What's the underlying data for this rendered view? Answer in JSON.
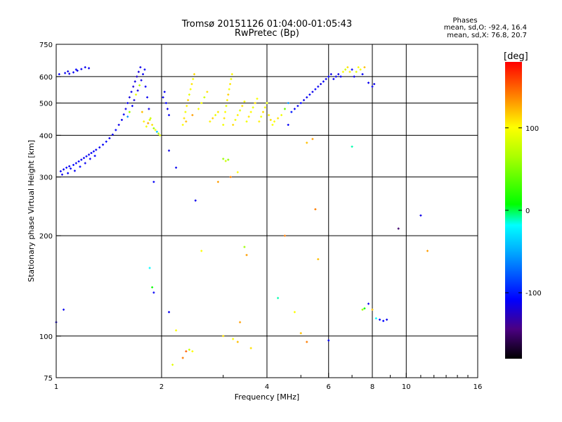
{
  "header": {
    "title_line1": "Tromsø 20151126 01:04:00-01:05:43",
    "title_line2": "RwPretec (Bp)"
  },
  "stats": {
    "heading": "Phases",
    "o_line": "mean, sd,O:  -92.4, 16.4",
    "x_line": "mean, sd,X:  76.8, 20.7"
  },
  "chart_data": {
    "type": "scatter",
    "xlabel": "Frequency [MHz]",
    "ylabel": "Stationary phase Virtual Height [km]",
    "x_scale": "log",
    "y_scale": "log",
    "xlim": [
      1,
      16
    ],
    "ylim": [
      75,
      750
    ],
    "x_ticks": [
      1,
      2,
      4,
      6,
      8,
      10,
      16
    ],
    "x_minor_ticks": [
      3,
      5,
      7,
      9,
      11,
      12,
      13,
      14,
      15
    ],
    "y_ticks": [
      75,
      100,
      200,
      300,
      400,
      500,
      600,
      750
    ],
    "grid": true,
    "colorbar": {
      "label": "[deg]",
      "range": [
        -180,
        180
      ],
      "ticks": [
        -100,
        0,
        100
      ]
    },
    "points": [
      [
        1.03,
        312,
        -110
      ],
      [
        1.05,
        316,
        -112
      ],
      [
        1.07,
        320,
        -108
      ],
      [
        1.09,
        323,
        -113
      ],
      [
        1.1,
        318,
        -110
      ],
      [
        1.12,
        326,
        -105
      ],
      [
        1.14,
        330,
        -112
      ],
      [
        1.16,
        334,
        -108
      ],
      [
        1.18,
        338,
        -110
      ],
      [
        1.2,
        342,
        -112
      ],
      [
        1.22,
        346,
        -106
      ],
      [
        1.24,
        350,
        -114
      ],
      [
        1.26,
        354,
        -110
      ],
      [
        1.28,
        358,
        -108
      ],
      [
        1.3,
        362,
        -112
      ],
      [
        1.04,
        305,
        -115
      ],
      [
        1.08,
        308,
        -109
      ],
      [
        1.13,
        313,
        -111
      ],
      [
        1.17,
        322,
        -107
      ],
      [
        1.21,
        330,
        -113
      ],
      [
        1.25,
        340,
        -111
      ],
      [
        1.29,
        347,
        -109
      ],
      [
        1.33,
        368,
        -112
      ],
      [
        1.36,
        375,
        -110
      ],
      [
        1.39,
        383,
        -106
      ],
      [
        1.42,
        392,
        -113
      ],
      [
        1.45,
        402,
        -111
      ],
      [
        1.48,
        415,
        -108
      ],
      [
        1.51,
        430,
        -114
      ],
      [
        1.54,
        445,
        -112
      ],
      [
        1.56,
        462,
        -110
      ],
      [
        1.58,
        480,
        -116
      ],
      [
        1.6,
        500,
        -112
      ],
      [
        1.62,
        520,
        -118
      ],
      [
        1.64,
        540,
        -114
      ],
      [
        1.66,
        560,
        -120
      ],
      [
        1.68,
        580,
        -116
      ],
      [
        1.7,
        600,
        -122
      ],
      [
        1.72,
        620,
        -118
      ],
      [
        1.74,
        640,
        -115
      ],
      [
        1.6,
        455,
        -60
      ],
      [
        1.62,
        470,
        60
      ],
      [
        1.65,
        490,
        -110
      ],
      [
        1.67,
        510,
        -120
      ],
      [
        1.69,
        530,
        95
      ],
      [
        1.71,
        545,
        -118
      ],
      [
        1.73,
        565,
        70
      ],
      [
        1.75,
        585,
        -115
      ],
      [
        1.77,
        610,
        -112
      ],
      [
        1.79,
        630,
        -110
      ],
      [
        1.06,
        615,
        -112
      ],
      [
        1.09,
        612,
        -114
      ],
      [
        1.12,
        618,
        -110
      ],
      [
        1.15,
        625,
        -115
      ],
      [
        1.18,
        632,
        -112
      ],
      [
        1.21,
        640,
        -111
      ],
      [
        1.24,
        636,
        -113
      ],
      [
        1.02,
        610,
        -110
      ],
      [
        1.08,
        622,
        -116
      ],
      [
        1.14,
        630,
        -108
      ],
      [
        1.8,
        560,
        -110
      ],
      [
        1.82,
        520,
        -112
      ],
      [
        1.84,
        480,
        -115
      ],
      [
        1.86,
        450,
        80
      ],
      [
        1.88,
        430,
        110
      ],
      [
        1.9,
        420,
        60
      ],
      [
        1.92,
        415,
        100
      ],
      [
        1.94,
        410,
        -40
      ],
      [
        1.96,
        405,
        70
      ],
      [
        1.98,
        400,
        90
      ],
      [
        1.76,
        470,
        120
      ],
      [
        1.78,
        440,
        105
      ],
      [
        1.81,
        425,
        95
      ],
      [
        1.83,
        435,
        130
      ],
      [
        1.85,
        445,
        85
      ],
      [
        2.02,
        520,
        -112
      ],
      [
        2.04,
        540,
        -110
      ],
      [
        2.06,
        500,
        -108
      ],
      [
        2.08,
        480,
        -115
      ],
      [
        2.1,
        460,
        -110
      ],
      [
        2.3,
        430,
        100
      ],
      [
        2.32,
        450,
        110
      ],
      [
        2.34,
        470,
        95
      ],
      [
        2.36,
        490,
        105
      ],
      [
        2.38,
        510,
        115
      ],
      [
        2.4,
        530,
        90
      ],
      [
        2.42,
        550,
        100
      ],
      [
        2.44,
        570,
        108
      ],
      [
        2.46,
        590,
        97
      ],
      [
        2.48,
        610,
        112
      ],
      [
        2.35,
        440,
        120
      ],
      [
        2.45,
        460,
        130
      ],
      [
        2.55,
        480,
        100
      ],
      [
        2.6,
        500,
        95
      ],
      [
        2.65,
        520,
        80
      ],
      [
        2.7,
        540,
        110
      ],
      [
        2.75,
        440,
        105
      ],
      [
        2.8,
        450,
        115
      ],
      [
        2.85,
        460,
        92
      ],
      [
        2.9,
        470,
        108
      ],
      [
        3.0,
        430,
        95
      ],
      [
        3.02,
        450,
        110
      ],
      [
        3.04,
        470,
        100
      ],
      [
        3.06,
        490,
        90
      ],
      [
        3.08,
        510,
        105
      ],
      [
        3.1,
        530,
        115
      ],
      [
        3.12,
        550,
        98
      ],
      [
        3.14,
        570,
        108
      ],
      [
        3.16,
        590,
        94
      ],
      [
        3.18,
        610,
        102
      ],
      [
        3.2,
        430,
        112
      ],
      [
        3.25,
        445,
        96
      ],
      [
        3.3,
        460,
        104
      ],
      [
        3.35,
        475,
        88
      ],
      [
        3.4,
        490,
        110
      ],
      [
        3.45,
        505,
        100
      ],
      [
        3.5,
        440,
        95
      ],
      [
        3.55,
        455,
        108
      ],
      [
        3.6,
        470,
        102
      ],
      [
        3.65,
        485,
        92
      ],
      [
        3.7,
        500,
        110
      ],
      [
        3.75,
        515,
        98
      ],
      [
        3.8,
        440,
        105
      ],
      [
        3.85,
        455,
        95
      ],
      [
        3.9,
        470,
        112
      ],
      [
        3.95,
        485,
        100
      ],
      [
        4.0,
        500,
        90
      ],
      [
        4.05,
        460,
        104
      ],
      [
        4.1,
        445,
        110
      ],
      [
        4.15,
        430,
        98
      ],
      [
        4.2,
        440,
        100
      ],
      [
        4.3,
        450,
        110
      ],
      [
        4.4,
        460,
        95
      ],
      [
        4.5,
        480,
        40
      ],
      [
        4.6,
        500,
        -60
      ],
      [
        4.7,
        470,
        -100
      ],
      [
        4.8,
        480,
        -110
      ],
      [
        4.9,
        490,
        -112
      ],
      [
        5.0,
        500,
        -108
      ],
      [
        5.1,
        510,
        -115
      ],
      [
        5.2,
        520,
        -112
      ],
      [
        5.3,
        530,
        -110
      ],
      [
        5.4,
        540,
        -114
      ],
      [
        5.5,
        550,
        -108
      ],
      [
        5.6,
        560,
        -112
      ],
      [
        5.7,
        570,
        -116
      ],
      [
        5.8,
        580,
        -110
      ],
      [
        5.9,
        590,
        -112
      ],
      [
        6.0,
        600,
        -108
      ],
      [
        6.1,
        610,
        -115
      ],
      [
        6.2,
        590,
        -110
      ],
      [
        6.3,
        600,
        -112
      ],
      [
        6.4,
        610,
        -114
      ],
      [
        6.5,
        600,
        -108
      ],
      [
        6.6,
        620,
        100
      ],
      [
        6.7,
        630,
        80
      ],
      [
        6.8,
        640,
        110
      ],
      [
        6.9,
        620,
        105
      ],
      [
        7.0,
        630,
        -110
      ],
      [
        7.1,
        600,
        -112
      ],
      [
        7.2,
        620,
        90
      ],
      [
        7.3,
        640,
        100
      ],
      [
        7.4,
        630,
        95
      ],
      [
        7.5,
        610,
        -110
      ],
      [
        7.6,
        640,
        120
      ],
      [
        7.8,
        575,
        -112
      ],
      [
        8.0,
        560,
        -110
      ],
      [
        8.1,
        570,
        -114
      ],
      [
        3.0,
        340,
        60
      ],
      [
        3.05,
        335,
        80
      ],
      [
        3.1,
        338,
        55
      ],
      [
        1.9,
        290,
        -110
      ],
      [
        2.1,
        360,
        -115
      ],
      [
        2.2,
        320,
        -112
      ],
      [
        2.5,
        255,
        -113
      ],
      [
        2.6,
        180,
        100
      ],
      [
        1.85,
        160,
        -20
      ],
      [
        1.88,
        140,
        10
      ],
      [
        1.9,
        135,
        -110
      ],
      [
        1.05,
        120,
        -112
      ],
      [
        1.0,
        110,
        -115
      ],
      [
        2.1,
        118,
        -112
      ],
      [
        2.2,
        104,
        100
      ],
      [
        2.3,
        86,
        140
      ],
      [
        2.35,
        90,
        150
      ],
      [
        2.4,
        91,
        80
      ],
      [
        2.45,
        90,
        100
      ],
      [
        2.15,
        82,
        90
      ],
      [
        3.0,
        100,
        110
      ],
      [
        3.2,
        98,
        100
      ],
      [
        3.3,
        96,
        120
      ],
      [
        3.35,
        110,
        130
      ],
      [
        3.5,
        175,
        130
      ],
      [
        3.45,
        185,
        60
      ],
      [
        3.6,
        92,
        110
      ],
      [
        4.3,
        130,
        -10
      ],
      [
        4.5,
        200,
        140
      ],
      [
        4.8,
        118,
        100
      ],
      [
        5.0,
        102,
        120
      ],
      [
        5.2,
        96,
        140
      ],
      [
        5.4,
        390,
        130
      ],
      [
        5.5,
        240,
        140
      ],
      [
        5.6,
        170,
        120
      ],
      [
        6.0,
        97,
        -110
      ],
      [
        7.0,
        370,
        -10
      ],
      [
        7.5,
        120,
        60
      ],
      [
        7.6,
        121,
        10
      ],
      [
        7.8,
        125,
        -112
      ],
      [
        8.0,
        120,
        120
      ],
      [
        8.2,
        113,
        -20
      ],
      [
        8.4,
        112,
        -110
      ],
      [
        8.6,
        111,
        -108
      ],
      [
        8.8,
        112,
        -112
      ],
      [
        9.5,
        210,
        -150
      ],
      [
        11.0,
        230,
        -114
      ],
      [
        11.5,
        180,
        130
      ],
      [
        2.9,
        290,
        130
      ],
      [
        3.15,
        300,
        140
      ],
      [
        3.3,
        310,
        100
      ],
      [
        5.2,
        380,
        120
      ],
      [
        4.6,
        430,
        -110
      ]
    ]
  }
}
